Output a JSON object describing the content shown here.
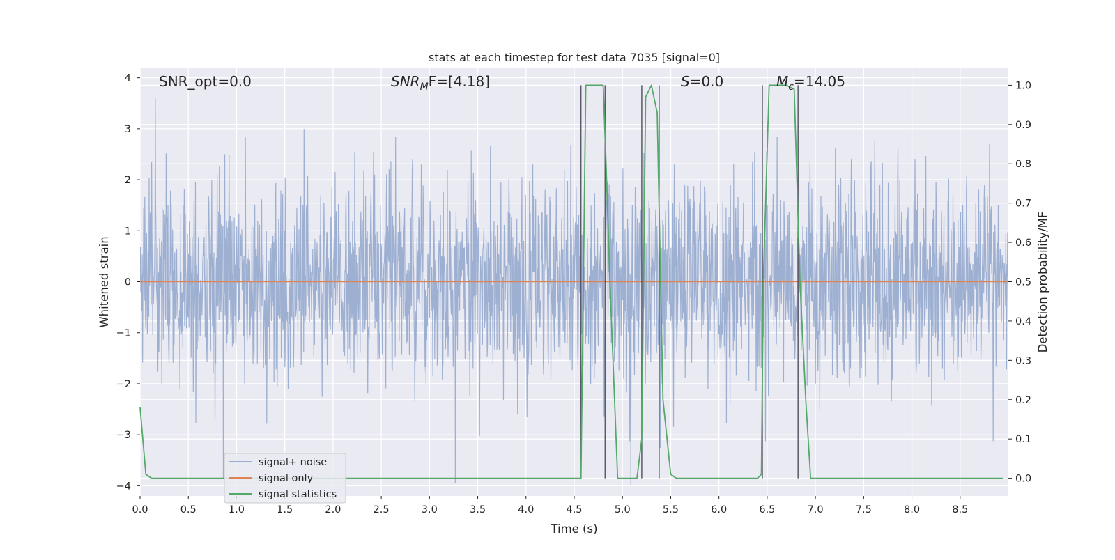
{
  "chart_data": {
    "type": "line",
    "title": "stats at each timestep for test data 7035 [signal=0]",
    "xlabel": "Time (s)",
    "ylabel_left": "Whitened strain",
    "ylabel_right": "Detection probability/MF",
    "xlim": [
      0.0,
      9.0
    ],
    "ylim_left": [
      -4.2,
      4.2
    ],
    "ylim_right": [
      -0.045,
      1.045
    ],
    "x_ticks": [
      0.0,
      0.5,
      1.0,
      1.5,
      2.0,
      2.5,
      3.0,
      3.5,
      4.0,
      4.5,
      5.0,
      5.5,
      6.0,
      6.5,
      7.0,
      7.5,
      8.0,
      8.5
    ],
    "x_tick_labels": [
      "0.0",
      "0.5",
      "1.0",
      "1.5",
      "2.0",
      "2.5",
      "3.0",
      "3.5",
      "4.0",
      "4.5",
      "5.0",
      "5.5",
      "6.0",
      "6.5",
      "7.0",
      "7.5",
      "8.0",
      "8.5"
    ],
    "y_ticks_left": [
      -4,
      -3,
      -2,
      -1,
      0,
      1,
      2,
      3,
      4
    ],
    "y_tick_labels_left": [
      "−4",
      "−3",
      "−2",
      "−1",
      "0",
      "1",
      "2",
      "3",
      "4"
    ],
    "y_ticks_right": [
      0.0,
      0.1,
      0.2,
      0.3,
      0.4,
      0.5,
      0.6,
      0.7,
      0.8,
      0.9,
      1.0
    ],
    "y_tick_labels_right": [
      "0.0",
      "0.1",
      "0.2",
      "0.3",
      "0.4",
      "0.5",
      "0.6",
      "0.7",
      "0.8",
      "0.9",
      "1.0"
    ],
    "grid": true,
    "legend_position": "lower-left",
    "annotations": {
      "snr_opt": "SNR_opt=0.0",
      "snr_mf_base": "SNR",
      "snr_mf_sub": "M",
      "snr_mf_rest": "F=[4.18]",
      "s_italic": "S",
      "s_rest": "=0.0",
      "mc_italic": "M",
      "mc_sub": "c",
      "mc_rest": "=14.05"
    },
    "series": [
      {
        "name": "signal+ noise",
        "color": "#9aadd0",
        "kind": "noise",
        "duration_s": 9.0,
        "envelope_sigma": 1.0,
        "max_abs": 4.0
      },
      {
        "name": "signal only",
        "color": "#dd8452",
        "x": [
          0.0,
          9.0
        ],
        "y": [
          0.0,
          0.0
        ]
      },
      {
        "name": "signal statistics",
        "color": "#55a868",
        "x": [
          0.0,
          0.06,
          0.12,
          4.55,
          4.57,
          4.62,
          4.7,
          4.8,
          4.83,
          4.87,
          4.95,
          5.15,
          5.2,
          5.24,
          5.3,
          5.36,
          5.42,
          5.5,
          5.56,
          6.4,
          6.44,
          6.46,
          6.52,
          6.7,
          6.78,
          6.84,
          6.9,
          6.95,
          8.95
        ],
        "y": [
          0.18,
          0.01,
          0.0,
          0.0,
          0.0,
          1.0,
          1.0,
          1.0,
          0.8,
          0.5,
          0.0,
          0.0,
          0.1,
          0.97,
          1.0,
          0.93,
          0.2,
          0.01,
          0.0,
          0.0,
          0.01,
          0.5,
          1.0,
          1.0,
          0.99,
          0.5,
          0.2,
          0.0,
          0.0
        ]
      }
    ],
    "vlines": {
      "color": "#5a5a6a",
      "x": [
        4.57,
        4.82,
        5.2,
        5.38,
        6.45,
        6.82
      ],
      "y_range_right": [
        0.0,
        1.0
      ]
    }
  }
}
